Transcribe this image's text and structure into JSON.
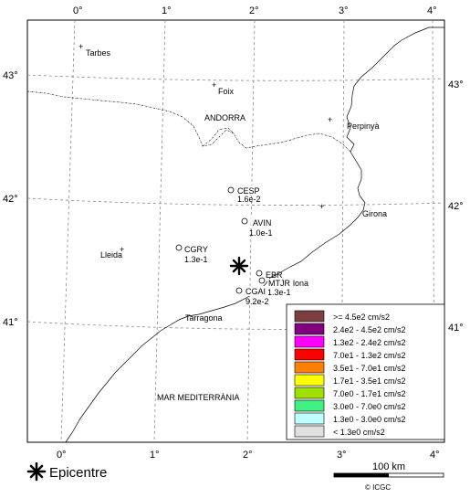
{
  "top_ticks": [
    "0°",
    "1°",
    "2°",
    "3°",
    "4°"
  ],
  "bottom_ticks": [
    "0°",
    "1°",
    "2°",
    "3°",
    "4°"
  ],
  "left_ticks": [
    "43°",
    "42°",
    "41°"
  ],
  "right_ticks": [
    "43°",
    "42°",
    "41°"
  ],
  "places": [
    {
      "name": "Tarbes"
    },
    {
      "name": "Foix"
    },
    {
      "name": "ANDORRA"
    },
    {
      "name": "Perpinyà"
    },
    {
      "name": "Girona"
    },
    {
      "name": "Lleida"
    },
    {
      "name": "Tarragona"
    },
    {
      "name": "MAR MEDITERRÀNIA"
    }
  ],
  "stations": [
    {
      "code": "CESP",
      "value": "1.6e-2"
    },
    {
      "code": "AVIN",
      "value": "1.0e-1"
    },
    {
      "code": "CGRY",
      "value": "1.3e-1"
    },
    {
      "code": "EBR",
      "value": ""
    },
    {
      "code": "MTJR",
      "value": "1.3e-1"
    },
    {
      "code": "CGAI",
      "value": "9.2e-2"
    }
  ],
  "partial_label": "lona",
  "legend": {
    "items": [
      {
        "color": "#7b3f3f",
        "label": ">= 4.5e2 cm/s2"
      },
      {
        "color": "#800080",
        "label": "2.4e2 - 4.5e2 cm/s2"
      },
      {
        "color": "#ff00ff",
        "label": "1.3e2 - 2.4e2 cm/s2"
      },
      {
        "color": "#ff0000",
        "label": "7.0e1 - 1.3e2 cm/s2"
      },
      {
        "color": "#ff8000",
        "label": "3.5e1 - 7.0e1 cm/s2"
      },
      {
        "color": "#ffff00",
        "label": "1.7e1 - 3.5e1 cm/s2"
      },
      {
        "color": "#a0e000",
        "label": "7.0e0 - 1.7e1 cm/s2"
      },
      {
        "color": "#40f080",
        "label": "3.0e0 - 7.0e0 cm/s2"
      },
      {
        "color": "#c0ffff",
        "label": "1.3e0 - 3.0e0 cm/s2"
      },
      {
        "color": "#e0e0e0",
        "label": "< 1.3e0 cm/s2"
      }
    ]
  },
  "epicentre_label": "Epicentre",
  "scale_label": "100 km",
  "credit": "© ICGC"
}
